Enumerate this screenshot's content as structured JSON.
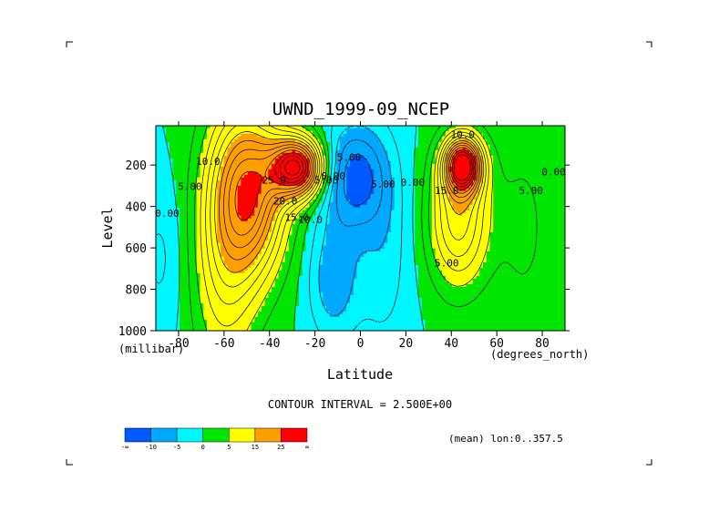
{
  "chart_data": {
    "type": "heatmap",
    "title": "UWND_1999-09_NCEP",
    "xlabel": "Latitude",
    "ylabel": "Level",
    "x_units": "(degrees_north)",
    "y_units": "(millibar)",
    "xlim": [
      -90,
      90
    ],
    "ylim": [
      1000,
      10
    ],
    "x_ticks": [
      "-80",
      "-60",
      "-40",
      "-20",
      "0",
      "20",
      "40",
      "60",
      "80"
    ],
    "y_ticks": [
      "200",
      "400",
      "600",
      "800",
      "1000"
    ],
    "y_tick_values": [
      200,
      400,
      600,
      800,
      1000
    ],
    "x_tick_values": [
      -80,
      -60,
      -40,
      -20,
      0,
      20,
      40,
      60,
      80
    ],
    "contour_interval_text": "CONTOUR INTERVAL = 2.500E+00",
    "footer_text": "(mean) lon:0..357.5",
    "contour_labels": [
      {
        "text": "10.0",
        "lat": -67,
        "lev": 200
      },
      {
        "text": "5.00",
        "lat": -75,
        "lev": 320
      },
      {
        "text": "0.00",
        "lat": -85,
        "lev": 450
      },
      {
        "text": "25.0",
        "lat": -38,
        "lev": 290
      },
      {
        "text": "20.0",
        "lat": -33,
        "lev": 390
      },
      {
        "text": "15.0",
        "lat": -28,
        "lev": 470
      },
      {
        "text": "10.0",
        "lat": -22,
        "lev": 480
      },
      {
        "text": "5.00",
        "lat": -15,
        "lev": 290
      },
      {
        "text": "0.00",
        "lat": -12,
        "lev": 270
      },
      {
        "text": "5.00",
        "lat": -5,
        "lev": 180
      },
      {
        "text": "5.00",
        "lat": 10,
        "lev": 310
      },
      {
        "text": "0.00",
        "lat": 23,
        "lev": 300
      },
      {
        "text": "10.0",
        "lat": 45,
        "lev": 70
      },
      {
        "text": "15.0",
        "lat": 38,
        "lev": 340
      },
      {
        "text": "5.00",
        "lat": 38,
        "lev": 690
      },
      {
        "text": "5.00",
        "lat": 75,
        "lev": 340
      },
      {
        "text": "0.00",
        "lat": 85,
        "lev": 250
      }
    ],
    "field_features": [
      {
        "name": "southern hemisphere westerly jet",
        "lat": -28,
        "lev": 200,
        "peak": 30
      },
      {
        "name": "northern hemisphere westerly jet",
        "lat": 45,
        "lev": 200,
        "peak": 30
      },
      {
        "name": "tropical easterlies",
        "lat": -5,
        "lev": 250,
        "peak": -12
      }
    ],
    "colorbar": {
      "colors": [
        "#0059ff",
        "#00a9ff",
        "#00f6ff",
        "#00e600",
        "#ffff00",
        "#ff9f00",
        "#ff0000"
      ],
      "labels": [
        "-∞",
        "-10",
        "-5",
        "0",
        "5",
        "15",
        "25",
        "∞"
      ]
    },
    "grid": false
  }
}
